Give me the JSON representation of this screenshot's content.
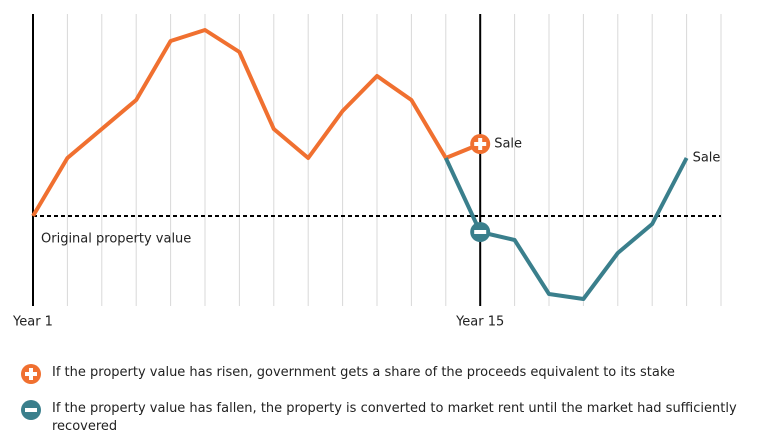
{
  "chart_data": {
    "type": "line",
    "categories": [
      "Year 1",
      null,
      null,
      null,
      null,
      null,
      null,
      null,
      null,
      null,
      null,
      null,
      null,
      "Year 15",
      null,
      null,
      null,
      null,
      null,
      null,
      null
    ],
    "series": [
      {
        "color": "#f07030",
        "end_label": "Sale",
        "icon": "plus",
        "values": [
          0,
          5.8,
          8.7,
          11.6,
          17.5,
          18.6,
          16.4,
          8.7,
          5.8,
          10.5,
          14,
          11.6,
          5.8,
          7.2,
          null,
          null,
          null,
          null,
          null,
          null,
          null
        ]
      },
      {
        "color": "#3a7f8c",
        "end_label": "Sale",
        "icon": "minus",
        "values": [
          null,
          null,
          null,
          null,
          null,
          null,
          null,
          null,
          null,
          null,
          null,
          null,
          5.8,
          -1.6,
          -2.4,
          -7.8,
          -8.3,
          -3.7,
          -0.8,
          5.8,
          null
        ]
      }
    ],
    "icon_category": "Year 15",
    "baseline": {
      "value": 0,
      "label": "Original property value"
    },
    "ylim": [
      -9,
      20
    ],
    "grid": true,
    "notes": [
      {
        "icon": "plus",
        "text": "If the property value has risen, government gets a share of the proceeds equivalent to its stake"
      },
      {
        "icon": "minus",
        "text": "If the property value has fallen, the property is converted to market rent until the market had sufficiently recovered"
      }
    ]
  }
}
